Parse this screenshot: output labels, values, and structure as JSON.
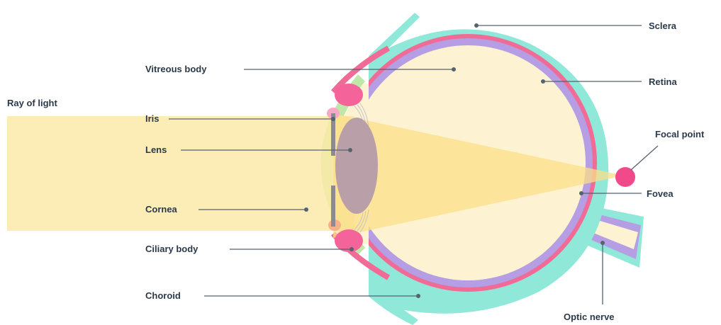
{
  "labels": {
    "ray_of_light": "Ray of light",
    "vitreous_body": "Vitreous body",
    "iris": "Iris",
    "lens": "Lens",
    "cornea": "Cornea",
    "ciliary_body": "Ciliary body",
    "choroid": "Choroid",
    "sclera": "Sclera",
    "retina": "Retina",
    "focal_point": "Focal point",
    "fovea": "Fovea",
    "optic_nerve": "Optic nerve"
  },
  "colors": {
    "sclera": "#8fe8d8",
    "choroid": "#f06b95",
    "retina": "#b59ee3",
    "vitreous": "#fdf3d2",
    "light": "#fce9a9",
    "light_cone": "#fbdf88",
    "lens": "#b9a0a8",
    "cornea": "#bfe7a7",
    "ciliary": "#f4639a",
    "focal": "#f04a8a",
    "label": "#2b3a4a",
    "leader": "#55626f"
  }
}
